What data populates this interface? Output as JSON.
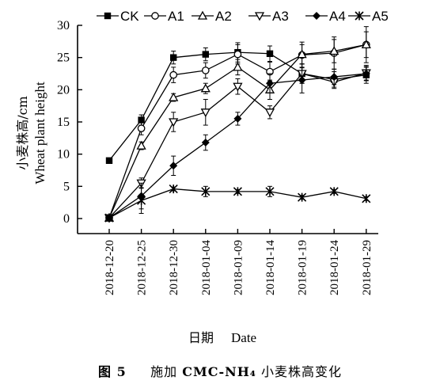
{
  "chart_data": {
    "type": "line",
    "title": "",
    "ylabel_cn": "小麦株高/cm",
    "ylabel_en": "Wheat plant height",
    "xlabel_cn": "日期",
    "xlabel_en": "Date",
    "ylim": [
      0,
      30
    ],
    "yticks": [
      0,
      5,
      10,
      15,
      20,
      25,
      30
    ],
    "x": [
      "2018-12-20",
      "2018-12-25",
      "2018-12-30",
      "2018-01-04",
      "2018-01-09",
      "2018-01-14",
      "2018-01-19",
      "2018-01-24",
      "2018-01-29"
    ],
    "legend_position": "top",
    "grid": false,
    "series": [
      {
        "name": "CK",
        "marker": "square-filled",
        "values": [
          9.0,
          15.3,
          25.0,
          25.5,
          25.8,
          25.6,
          22.5,
          21.6,
          22.3
        ],
        "errors": [
          0.3,
          0.8,
          1.0,
          1.0,
          1.5,
          1.2,
          1.5,
          1.2,
          1.3
        ]
      },
      {
        "name": "A1",
        "marker": "circle-open",
        "values": [
          0.1,
          14.0,
          22.3,
          23.0,
          25.5,
          22.8,
          25.4,
          25.7,
          27.0
        ],
        "errors": [
          0.2,
          1.0,
          1.2,
          1.2,
          1.5,
          1.5,
          2.0,
          2.5,
          2.8
        ]
      },
      {
        "name": "A2",
        "marker": "triangle-up-open",
        "values": [
          0.1,
          11.3,
          18.8,
          20.2,
          23.5,
          20.0,
          25.5,
          26.0,
          27.0
        ],
        "errors": [
          0.2,
          0.6,
          0.6,
          0.8,
          1.2,
          1.5,
          1.5,
          1.8,
          2.0
        ]
      },
      {
        "name": "A3",
        "marker": "triangle-down-open",
        "values": [
          0.1,
          5.5,
          15.0,
          16.5,
          20.5,
          16.5,
          22.5,
          21.2,
          22.6
        ],
        "errors": [
          0.2,
          0.8,
          1.5,
          2.0,
          1.2,
          1.0,
          1.5,
          1.0,
          1.2
        ]
      },
      {
        "name": "A4",
        "marker": "diamond-filled",
        "values": [
          0.1,
          3.5,
          8.2,
          11.8,
          15.5,
          21.0,
          21.5,
          22.0,
          22.5
        ],
        "errors": [
          0.2,
          2.0,
          1.5,
          1.2,
          1.0,
          1.5,
          2.0,
          1.2,
          1.0
        ]
      },
      {
        "name": "A5",
        "marker": "asterisk",
        "values": [
          0.1,
          2.8,
          4.6,
          4.2,
          4.2,
          4.2,
          3.3,
          4.2,
          3.1
        ],
        "errors": [
          0.2,
          2.0,
          0.3,
          0.8,
          0.3,
          0.8,
          0.3,
          0.3,
          0.3
        ]
      }
    ]
  },
  "caption": {
    "fig_no": "图 5",
    "text_prefix": "施加",
    "chem": "CMC-NH₄",
    "text_suffix": "小麦株高变化"
  }
}
